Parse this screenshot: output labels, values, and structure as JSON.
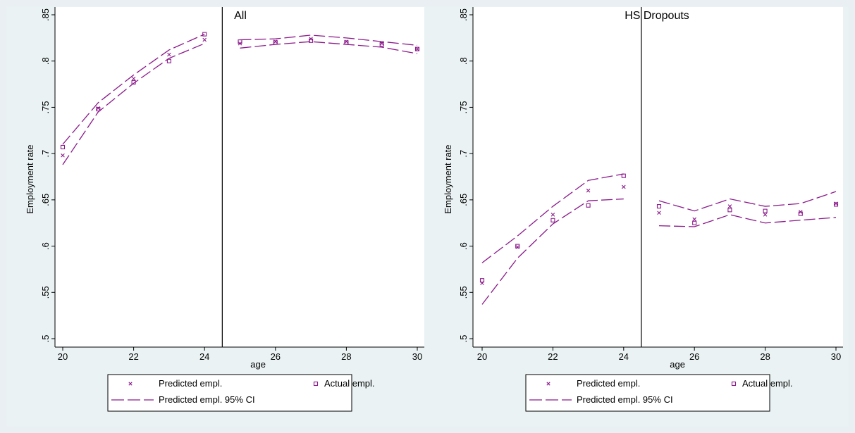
{
  "colors": {
    "background": "#e9eff3",
    "plot_area": "#ffffff",
    "series": "#8b1a8b",
    "axis": "#000000"
  },
  "chart_data": [
    {
      "type": "scatter",
      "title": "All",
      "xlabel": "age",
      "ylabel": "Employment rate",
      "xlim": [
        20,
        30
      ],
      "ylim": [
        0.5,
        0.85
      ],
      "xticks": [
        "20",
        "22",
        "24",
        "26",
        "28",
        "30"
      ],
      "yticks": [
        ".5",
        ".55",
        ".6",
        ".65",
        ".7",
        ".75",
        ".8",
        ".85"
      ],
      "grid": false,
      "cutoff_line_x": 24.5,
      "series": [
        {
          "name": "Predicted empl.",
          "marker": "x",
          "x": [
            20,
            21,
            22,
            23,
            24,
            25,
            26,
            27,
            28,
            29,
            30
          ],
          "y": [
            0.698,
            0.749,
            0.781,
            0.807,
            0.823,
            0.819,
            0.821,
            0.824,
            0.821,
            0.819,
            0.813
          ]
        },
        {
          "name": "Actual empl.",
          "marker": "square",
          "x": [
            20,
            21,
            22,
            23,
            24,
            25,
            26,
            27,
            28,
            29,
            30
          ],
          "y": [
            0.707,
            0.748,
            0.777,
            0.8,
            0.829,
            0.821,
            0.82,
            0.822,
            0.82,
            0.818,
            0.813
          ]
        },
        {
          "name": "Predicted empl. 95% CI",
          "style": "dashed",
          "upper": {
            "x": [
              20,
              21,
              22,
              23,
              24,
              25,
              26,
              27,
              28,
              29,
              30
            ],
            "y": [
              0.71,
              0.755,
              0.785,
              0.812,
              0.829,
              0.823,
              0.824,
              0.828,
              0.825,
              0.821,
              0.817
            ]
          },
          "lower": {
            "x": [
              20,
              21,
              22,
              23,
              24,
              25,
              26,
              27,
              28,
              29,
              30
            ],
            "y": [
              0.688,
              0.745,
              0.776,
              0.803,
              0.819,
              0.814,
              0.818,
              0.821,
              0.818,
              0.815,
              0.808
            ]
          }
        }
      ]
    },
    {
      "type": "scatter",
      "title": "HS Dropouts",
      "xlabel": "age",
      "ylabel": "Employment rate",
      "xlim": [
        20,
        30
      ],
      "ylim": [
        0.5,
        0.85
      ],
      "xticks": [
        "20",
        "22",
        "24",
        "26",
        "28",
        "30"
      ],
      "yticks": [
        ".5",
        ".55",
        ".6",
        ".65",
        ".7",
        ".75",
        ".8",
        ".85"
      ],
      "grid": false,
      "cutoff_line_x": 24.5,
      "series": [
        {
          "name": "Predicted empl.",
          "marker": "x",
          "x": [
            20,
            21,
            22,
            23,
            24,
            25,
            26,
            27,
            28,
            29,
            30
          ],
          "y": [
            0.56,
            0.599,
            0.634,
            0.66,
            0.664,
            0.636,
            0.629,
            0.643,
            0.634,
            0.637,
            0.646
          ]
        },
        {
          "name": "Actual empl.",
          "marker": "square",
          "x": [
            20,
            21,
            22,
            23,
            24,
            25,
            26,
            27,
            28,
            29,
            30
          ],
          "y": [
            0.563,
            0.6,
            0.628,
            0.644,
            0.676,
            0.643,
            0.625,
            0.639,
            0.638,
            0.635,
            0.645
          ]
        },
        {
          "name": "Predicted empl. 95% CI",
          "style": "dashed",
          "upper": {
            "x": [
              20,
              21,
              22,
              23,
              24,
              25,
              26,
              27,
              28,
              29,
              30
            ],
            "y": [
              0.582,
              0.611,
              0.643,
              0.671,
              0.678,
              0.649,
              0.638,
              0.651,
              0.643,
              0.646,
              0.659
            ]
          },
          "lower": {
            "x": [
              20,
              21,
              22,
              23,
              24,
              25,
              26,
              27,
              28,
              29,
              30
            ],
            "y": [
              0.537,
              0.587,
              0.624,
              0.649,
              0.651,
              0.622,
              0.621,
              0.634,
              0.625,
              0.628,
              0.631
            ]
          }
        }
      ]
    }
  ]
}
